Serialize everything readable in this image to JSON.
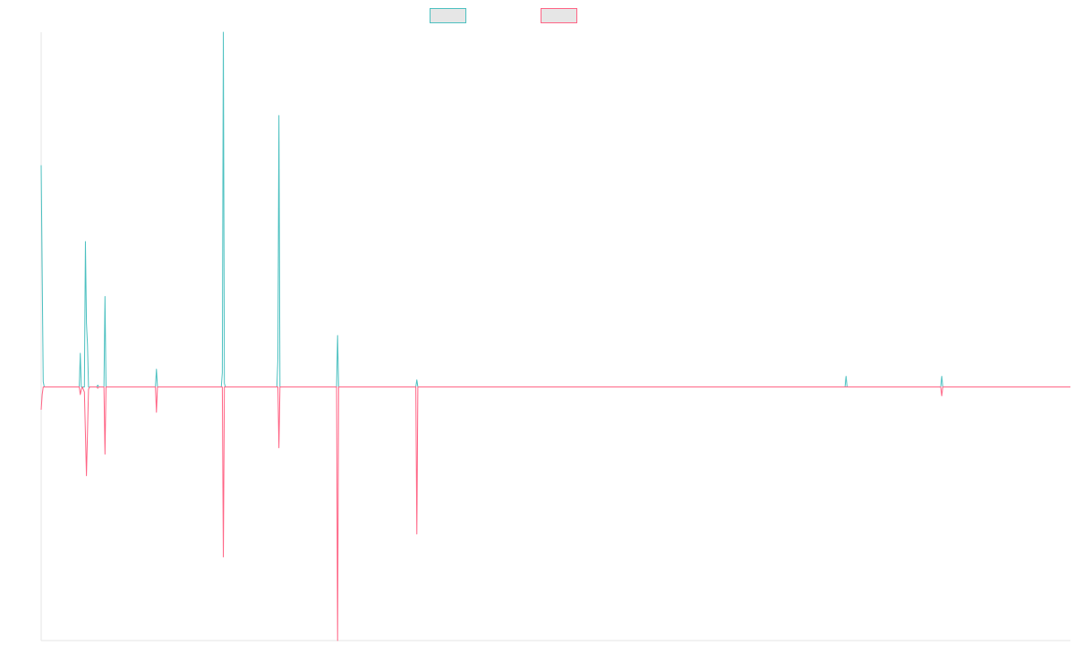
{
  "chart_data": {
    "type": "line",
    "title": "",
    "xlabel": "",
    "ylabel": "",
    "grid": false,
    "legend": "top-center",
    "x_range": [
      0,
      1000
    ],
    "y_range": [
      -100,
      100
    ],
    "series": [
      {
        "color": "#4bc0c0",
        "points": [
          [
            0,
            62.5
          ],
          [
            2,
            1.5
          ],
          [
            3,
            0
          ],
          [
            37,
            0
          ],
          [
            38,
            9.5
          ],
          [
            39,
            0
          ],
          [
            42,
            0
          ],
          [
            43,
            41
          ],
          [
            44,
            18
          ],
          [
            45,
            12
          ],
          [
            46,
            0
          ],
          [
            54,
            0
          ],
          [
            55,
            0.5
          ],
          [
            56,
            0
          ],
          [
            61,
            0
          ],
          [
            62,
            25.5
          ],
          [
            63,
            0
          ],
          [
            111,
            0
          ],
          [
            112,
            5
          ],
          [
            113,
            0
          ],
          [
            175,
            0
          ],
          [
            176,
            4
          ],
          [
            177,
            100
          ],
          [
            178,
            1
          ],
          [
            179,
            0
          ],
          [
            229,
            0
          ],
          [
            230,
            8
          ],
          [
            231,
            76.5
          ],
          [
            232,
            0
          ],
          [
            287,
            0
          ],
          [
            288,
            14.5
          ],
          [
            289,
            0
          ],
          [
            364,
            0
          ],
          [
            365,
            2
          ],
          [
            366,
            0
          ],
          [
            781,
            0
          ],
          [
            782,
            3
          ],
          [
            783,
            0
          ],
          [
            874,
            0
          ],
          [
            875,
            3
          ],
          [
            876,
            0
          ],
          [
            1000,
            0
          ]
        ]
      },
      {
        "color": "#ff6384",
        "points": [
          [
            0,
            -9
          ],
          [
            1,
            -3
          ],
          [
            2,
            0
          ],
          [
            37,
            0
          ],
          [
            38,
            -3
          ],
          [
            39,
            -1
          ],
          [
            40,
            0
          ],
          [
            42,
            -2
          ],
          [
            44,
            -35
          ],
          [
            46,
            -1
          ],
          [
            47,
            0
          ],
          [
            54,
            0
          ],
          [
            55,
            -0.5
          ],
          [
            56,
            0
          ],
          [
            61,
            0
          ],
          [
            62,
            -26.5
          ],
          [
            63,
            0
          ],
          [
            111,
            0
          ],
          [
            112,
            -10
          ],
          [
            113,
            0
          ],
          [
            176,
            0
          ],
          [
            177,
            -67
          ],
          [
            178,
            0
          ],
          [
            230,
            0
          ],
          [
            231,
            -24
          ],
          [
            232,
            0
          ],
          [
            287,
            0
          ],
          [
            288,
            -100
          ],
          [
            289,
            0
          ],
          [
            364,
            0
          ],
          [
            365,
            -58
          ],
          [
            366,
            0
          ],
          [
            874,
            0
          ],
          [
            875,
            -3.5
          ],
          [
            876,
            0
          ],
          [
            1000,
            0
          ]
        ]
      }
    ]
  }
}
